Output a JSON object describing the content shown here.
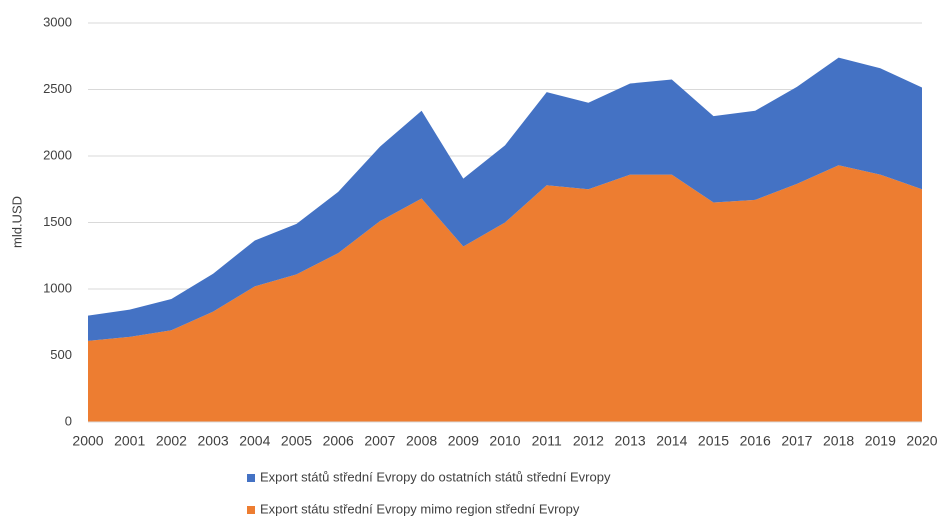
{
  "chart_data": {
    "type": "stacked_area",
    "y_label": "mld.USD",
    "categories": [
      "2000",
      "2001",
      "2002",
      "2003",
      "2004",
      "2005",
      "2006",
      "2007",
      "2008",
      "2009",
      "2010",
      "2011",
      "2012",
      "2013",
      "2014",
      "2015",
      "2016",
      "2017",
      "2018",
      "2019",
      "2020"
    ],
    "series": [
      {
        "name": "Export států střední Evropy do ostatních států střední Evropy",
        "color": "#4472c4",
        "values": [
          190,
          205,
          235,
          285,
          345,
          380,
          460,
          560,
          660,
          510,
          580,
          700,
          650,
          685,
          715,
          650,
          670,
          730,
          810,
          800,
          765
        ]
      },
      {
        "name": "Export státu střední Evropy mimo region střední Evropy",
        "color": "#ed7d31",
        "values": [
          610,
          640,
          690,
          830,
          1020,
          1110,
          1270,
          1510,
          1680,
          1320,
          1500,
          1780,
          1750,
          1860,
          1860,
          1650,
          1670,
          1790,
          1930,
          1860,
          1750
        ]
      }
    ],
    "ylim": [
      0,
      3000
    ],
    "yticks": [
      0,
      500,
      1000,
      1500,
      2000,
      2500,
      3000
    ],
    "grid": true,
    "legend": "bottom"
  }
}
